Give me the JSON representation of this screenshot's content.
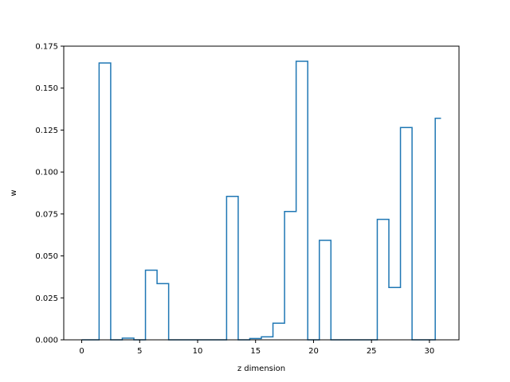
{
  "chart_data": {
    "type": "line",
    "subtype": "step",
    "title": "",
    "xlabel": "z dimension",
    "ylabel": "w",
    "xlim": [
      -1.55,
      32.55
    ],
    "ylim": [
      0,
      0.175
    ],
    "xticks": [
      0,
      5,
      10,
      15,
      20,
      25,
      30
    ],
    "xtick_labels": [
      "0",
      "5",
      "10",
      "15",
      "20",
      "25",
      "30"
    ],
    "yticks": [
      0,
      0.025,
      0.05,
      0.075,
      0.1,
      0.125,
      0.15,
      0.175
    ],
    "ytick_labels": [
      "0.000",
      "0.025",
      "0.050",
      "0.075",
      "0.100",
      "0.125",
      "0.150",
      "0.175"
    ],
    "grid": false,
    "line_color": "#1f77b4",
    "series": [
      {
        "x": [
          0,
          1,
          2,
          3,
          4,
          5,
          6,
          7,
          8,
          9,
          10,
          11,
          12,
          13,
          14,
          15,
          16,
          17,
          18,
          19,
          20,
          21,
          22,
          23,
          24,
          25,
          26,
          27,
          28,
          29,
          30,
          31
        ],
        "values": [
          0,
          0,
          0.165,
          0,
          0.001,
          0,
          0.0415,
          0.0335,
          0,
          0,
          0,
          0,
          0,
          0.0855,
          0,
          0.0008,
          0.0018,
          0.0099,
          0.0765,
          0.166,
          0,
          0.0593,
          0,
          0,
          0,
          0,
          0.0718,
          0.0312,
          0.1265,
          0,
          0,
          0.132
        ]
      }
    ]
  }
}
